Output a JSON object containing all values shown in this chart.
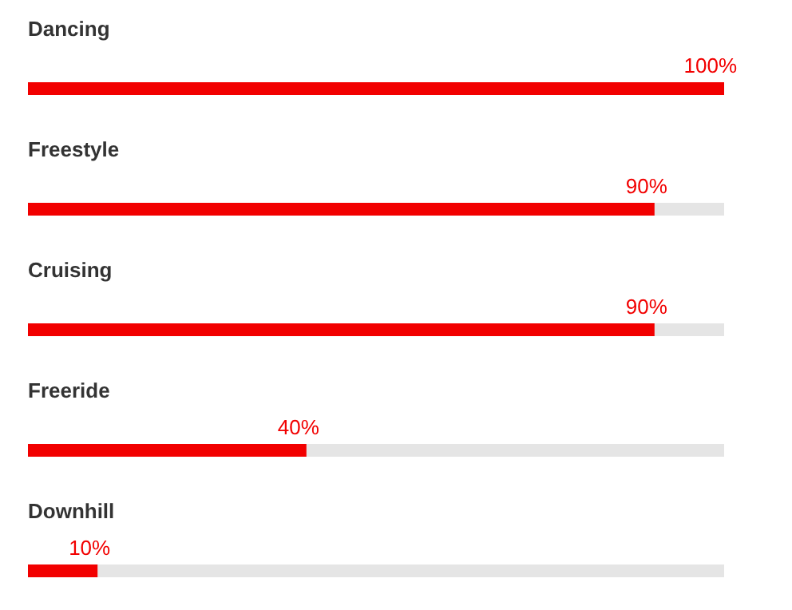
{
  "chart_data": {
    "type": "bar",
    "orientation": "horizontal",
    "categories": [
      "Dancing",
      "Freestyle",
      "Cruising",
      "Freeride",
      "Downhill"
    ],
    "series": [
      {
        "color": "#f20000",
        "values": [
          100,
          90,
          90,
          40,
          10
        ],
        "value_labels": [
          "100%",
          "90%",
          "90%",
          "40%",
          "10%"
        ]
      }
    ],
    "xlim": [
      0,
      100
    ],
    "tick_labels": false,
    "grid": false
  }
}
